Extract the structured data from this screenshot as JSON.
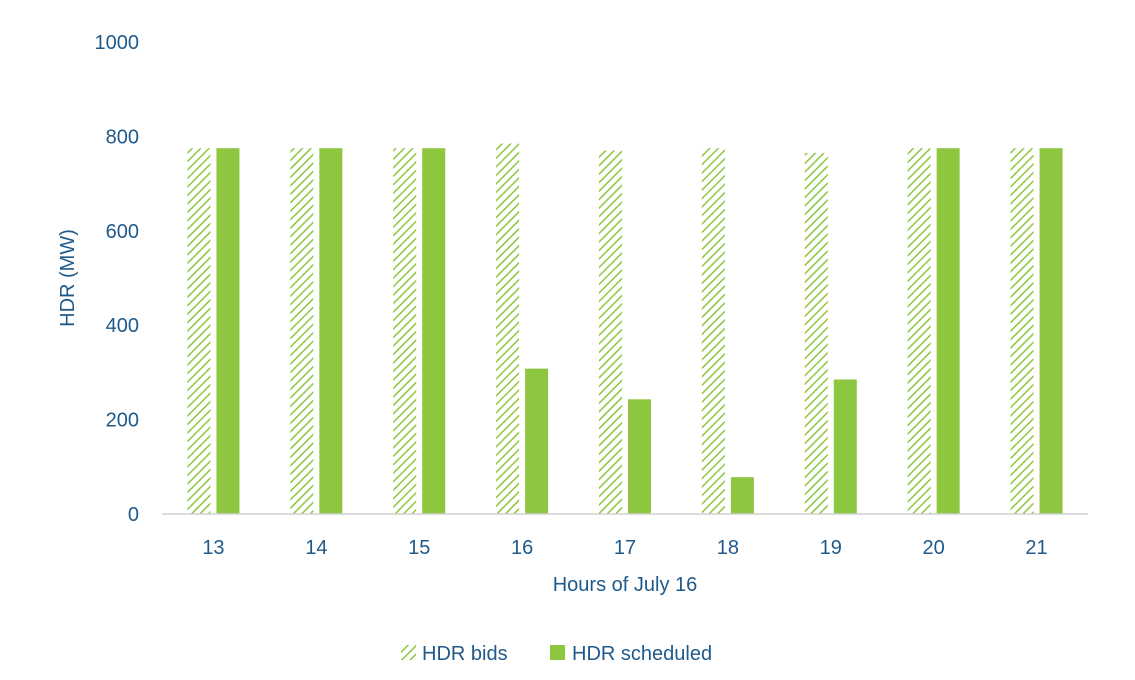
{
  "chart_data": {
    "type": "bar",
    "title": "",
    "xlabel": "Hours of July 16",
    "ylabel": "HDR (MW)",
    "ylim": [
      0,
      1000
    ],
    "yticks": [
      "0",
      "200",
      "400",
      "600",
      "800",
      "1000"
    ],
    "categories": [
      "13",
      "14",
      "15",
      "16",
      "17",
      "18",
      "19",
      "20",
      "21"
    ],
    "series": [
      {
        "name": "HDR bids",
        "style": "hatched",
        "color": "#8dc63f",
        "values": [
          775,
          775,
          775,
          785,
          770,
          775,
          765,
          775,
          775
        ]
      },
      {
        "name": "HDR scheduled",
        "style": "solid",
        "color": "#8dc63f",
        "values": [
          775,
          775,
          775,
          308,
          243,
          78,
          285,
          775,
          775
        ]
      }
    ],
    "grid": false,
    "legend_position": "bottom-center",
    "colors": {
      "text": "#1f5a8a",
      "axis": "#d0d0d0",
      "bar": "#8dc63f"
    }
  }
}
